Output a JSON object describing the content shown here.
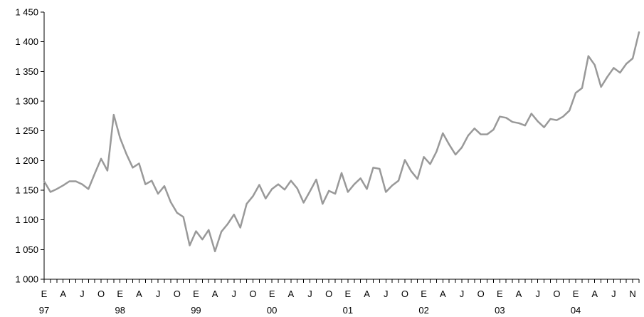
{
  "chart_data": {
    "type": "line",
    "title": "",
    "xlabel": "",
    "ylabel": "",
    "ylim": [
      1000,
      1450
    ],
    "y_ticks": [
      1000,
      1050,
      1100,
      1150,
      1200,
      1250,
      1300,
      1350,
      1400,
      1450
    ],
    "y_tick_labels": [
      "1 000",
      "1 050",
      "1 100",
      "1 150",
      "1 200",
      "1 250",
      "1 300",
      "1 350",
      "1 400",
      "1 450"
    ],
    "x_month_labels": [
      "E",
      "A",
      "J",
      "O",
      "E",
      "A",
      "J",
      "O",
      "E",
      "A",
      "J",
      "O",
      "E",
      "A",
      "J",
      "O",
      "E",
      "A",
      "J",
      "O",
      "E",
      "A",
      "J",
      "O",
      "E",
      "A",
      "J",
      "O",
      "E",
      "A",
      "J",
      "N"
    ],
    "x_year_labels": [
      "97",
      "98",
      "99",
      "00",
      "01",
      "02",
      "03",
      "04"
    ],
    "grid": false,
    "legend": "none",
    "colors": {
      "line": "#999999",
      "axis": "#000000"
    },
    "series": [
      {
        "values": [
          1165,
          1147,
          1152,
          1158,
          1165,
          1165,
          1160,
          1152,
          1178,
          1203,
          1183,
          1277,
          1238,
          1211,
          1188,
          1195,
          1160,
          1166,
          1144,
          1157,
          1130,
          1112,
          1105,
          1057,
          1081,
          1067,
          1083,
          1047,
          1080,
          1093,
          1109,
          1087,
          1127,
          1140,
          1159,
          1136,
          1152,
          1160,
          1151,
          1166,
          1153,
          1129,
          1148,
          1168,
          1127,
          1149,
          1144,
          1179,
          1147,
          1160,
          1170,
          1152,
          1188,
          1186,
          1147,
          1158,
          1166,
          1201,
          1182,
          1169,
          1206,
          1194,
          1215,
          1246,
          1227,
          1210,
          1222,
          1242,
          1254,
          1244,
          1244,
          1252,
          1274,
          1272,
          1265,
          1263,
          1259,
          1279,
          1266,
          1256,
          1270,
          1268,
          1274,
          1284,
          1314,
          1322,
          1376,
          1361,
          1324,
          1341,
          1356,
          1348,
          1363,
          1372,
          1416
        ]
      }
    ]
  }
}
